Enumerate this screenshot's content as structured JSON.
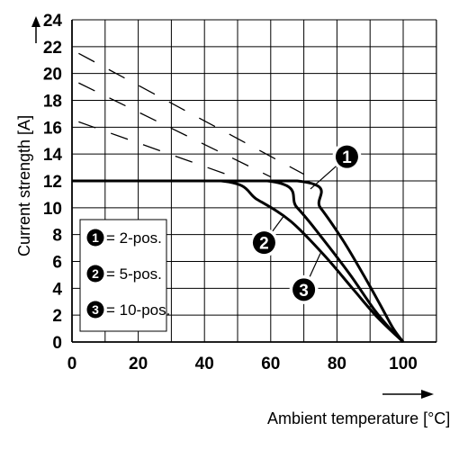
{
  "chart_data": {
    "type": "line",
    "xlabel": "Ambient temperature [°C]",
    "ylabel": "Current strength [A]",
    "xlim": [
      0,
      100
    ],
    "ylim": [
      0,
      24
    ],
    "x_ticks": [
      0,
      20,
      40,
      60,
      80,
      100
    ],
    "y_ticks": [
      0,
      2,
      4,
      6,
      8,
      10,
      12,
      14,
      16,
      18,
      20,
      22,
      24
    ],
    "grid": true,
    "legend_position": "left",
    "series": [
      {
        "key": "1",
        "name": "2-pos.",
        "points": [
          [
            0,
            12
          ],
          [
            68,
            12
          ],
          [
            75,
            10
          ],
          [
            82,
            7.5
          ],
          [
            88,
            5
          ],
          [
            93,
            2.8
          ],
          [
            97,
            1
          ],
          [
            100,
            0
          ]
        ]
      },
      {
        "key": "2",
        "name": "5-pos.",
        "points": [
          [
            0,
            12
          ],
          [
            59,
            12
          ],
          [
            68,
            10
          ],
          [
            76,
            7.6
          ],
          [
            84,
            5
          ],
          [
            91,
            2.5
          ],
          [
            96,
            1
          ],
          [
            100,
            0
          ]
        ]
      },
      {
        "key": "3",
        "name": "10-pos.",
        "points": [
          [
            0,
            12
          ],
          [
            45,
            12
          ],
          [
            56,
            10.6
          ],
          [
            66,
            9
          ],
          [
            76,
            6.5
          ],
          [
            85,
            3.9
          ],
          [
            92,
            1.9
          ],
          [
            100,
            0
          ]
        ]
      }
    ],
    "dashed_series": [
      {
        "points": [
          [
            2,
            21.5
          ],
          [
            70,
            12.5
          ]
        ]
      },
      {
        "points": [
          [
            2,
            19.3
          ],
          [
            60,
            12.3
          ]
        ]
      },
      {
        "points": [
          [
            2,
            16.4
          ],
          [
            50,
            12.2
          ]
        ]
      }
    ],
    "callouts": [
      {
        "label": "1",
        "x": 83,
        "y": 13.8
      },
      {
        "label": "2",
        "x": 58,
        "y": 7.4
      },
      {
        "label": "3",
        "x": 70,
        "y": 3.9
      }
    ],
    "legend": [
      {
        "key": "1",
        "text": "= 2-pos."
      },
      {
        "key": "2",
        "text": "= 5-pos."
      },
      {
        "key": "3",
        "text": "= 10-pos."
      }
    ]
  }
}
